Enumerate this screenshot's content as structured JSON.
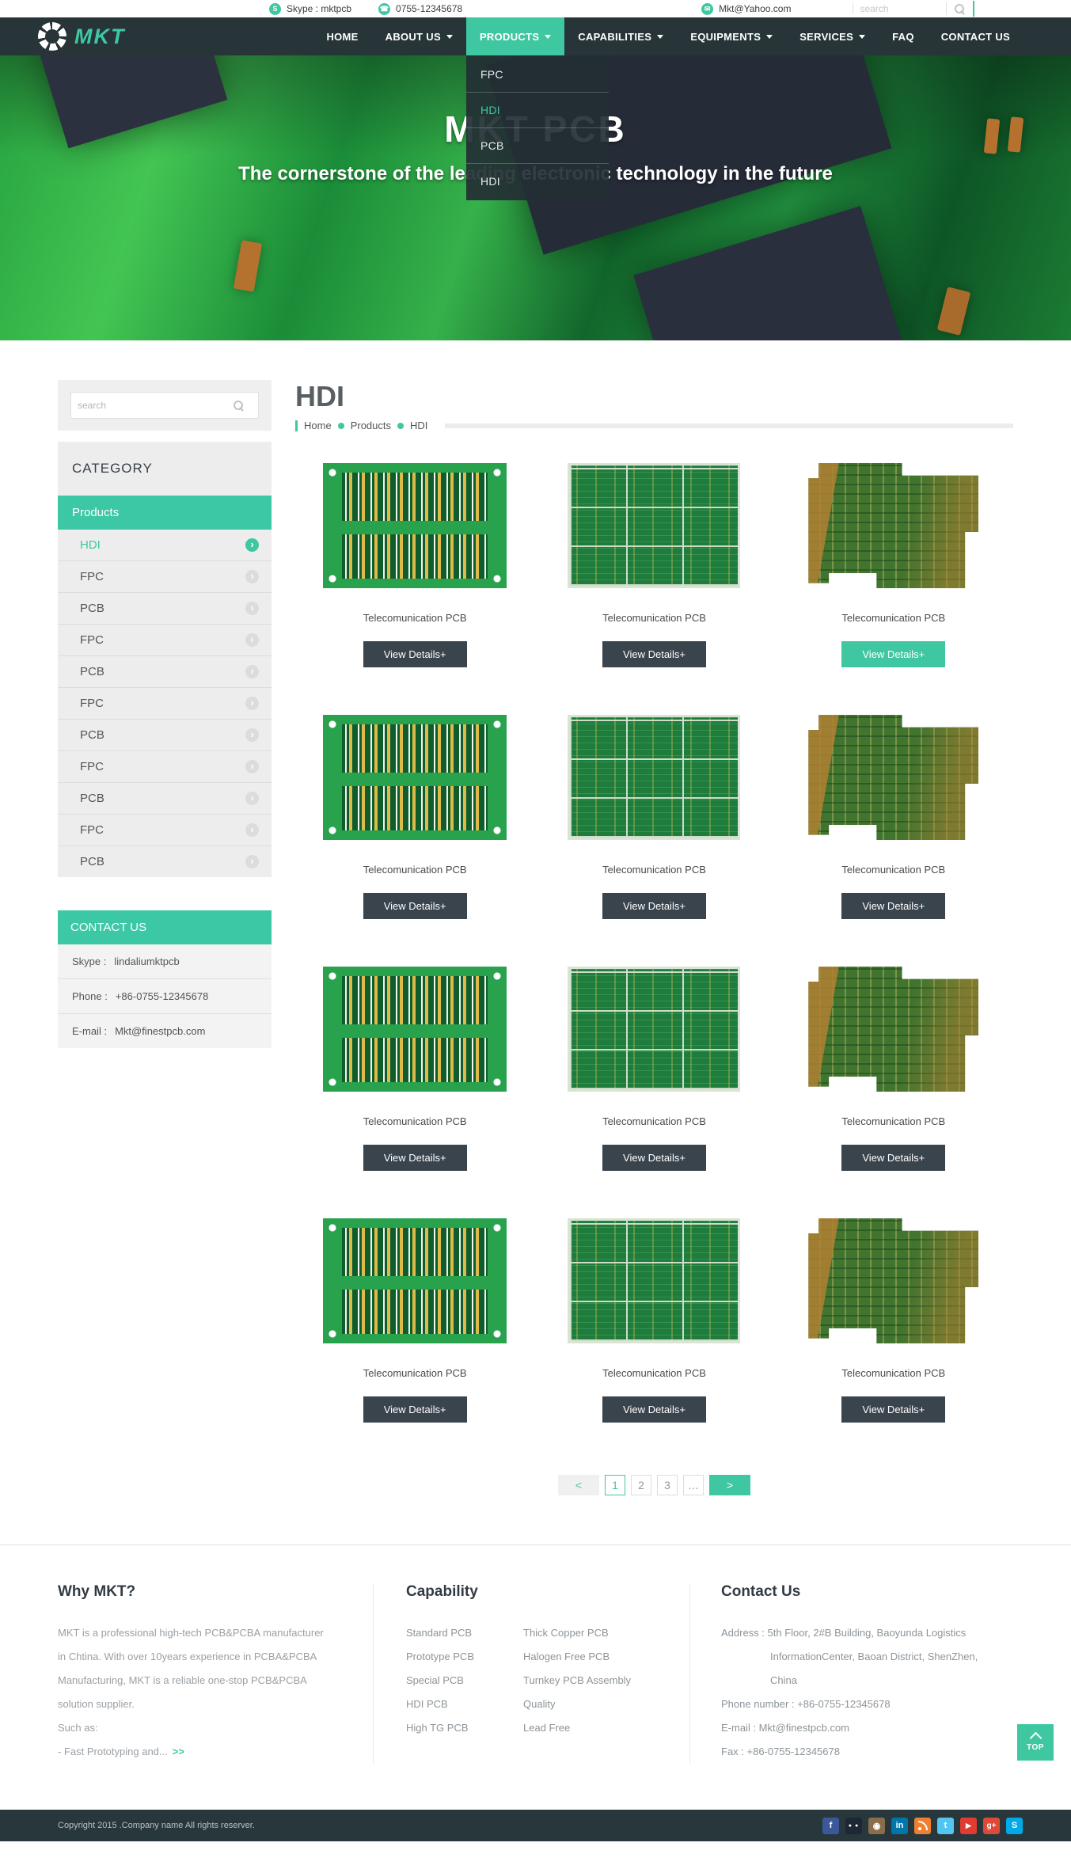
{
  "colors": {
    "accent": "#3fc7a2",
    "nav_bg": "#273539",
    "dark_button": "#3a444d",
    "sidebar_bg": "#ededed"
  },
  "topbar": {
    "items": [
      {
        "icon": "skype",
        "glyph": "S",
        "text": "Skype : mktpcb"
      },
      {
        "icon": "phone",
        "glyph": "☎",
        "text": "0755-12345678"
      },
      {
        "icon": "email",
        "glyph": "✉",
        "text": "Mkt@Yahoo.com"
      }
    ],
    "search_placeholder": "search"
  },
  "nav": {
    "brand": "MKT",
    "items": [
      {
        "label": "HOME"
      },
      {
        "label": "ABOUT US"
      },
      {
        "label": "PRODUCTS"
      },
      {
        "label": "CAPABILITIES"
      },
      {
        "label": "EQUIPMENTS"
      },
      {
        "label": "SERVICES"
      },
      {
        "label": "FAQ"
      },
      {
        "label": "CONTACT US"
      }
    ],
    "products_dropdown": [
      "FPC",
      "HDI",
      "PCB",
      "HDI"
    ],
    "dropdown_active": "HDI"
  },
  "hero": {
    "title": "MKT PCB",
    "subtitle": "The cornerstone of the leading electronic technology in the future"
  },
  "sidebar": {
    "search_placeholder": "search",
    "category_title": "CATEGORY",
    "group_title": "Products",
    "items": [
      "HDI",
      "FPC",
      "PCB",
      "FPC",
      "PCB",
      "FPC",
      "PCB",
      "FPC",
      "PCB",
      "FPC",
      "PCB"
    ],
    "active_item": "HDI",
    "contact": {
      "title": "CONTACT US",
      "rows": [
        {
          "label": "Skype :",
          "value": "lindaliumktpcb"
        },
        {
          "label": "Phone :",
          "value": "+86-0755-12345678"
        },
        {
          "label": "E-mail :",
          "value": "Mkt@finestpcb.com"
        }
      ]
    }
  },
  "page": {
    "title": "HDI",
    "breadcrumb": [
      "Home",
      "Products",
      "HDI"
    ]
  },
  "products": {
    "card_title": "Telecomunication PCB",
    "view_details": "View Details+",
    "count": 12,
    "highlighted_card_index": 2
  },
  "pagination": {
    "prev": "<",
    "pages": [
      "1",
      "2",
      "3",
      "…"
    ],
    "active_page": "1",
    "next": ">"
  },
  "footer": {
    "why": {
      "title": "Why MKT?",
      "lines": [
        "MKT is a professional high-tech PCB&PCBA manufacturer",
        "in Chtina. With over 10years experience in PCBA&PCBA",
        "Manufacturing, MKT is a reliable one-stop PCB&PCBA",
        "solution supplier.",
        "Such as:"
      ],
      "more": "- Fast Prototyping and...",
      "more_arrow": ">>"
    },
    "capability": {
      "title": "Capability",
      "col1": [
        "Standard PCB",
        "Prototype PCB",
        "Special PCB",
        "HDI PCB",
        "High TG PCB"
      ],
      "col2": [
        "Thick Copper PCB",
        "Halogen Free PCB",
        "Turnkey PCB Assembly",
        "Quality",
        "Lead Free"
      ]
    },
    "contact": {
      "title": "Contact Us",
      "lines": [
        "Address : 5th Floor, 2#B Building, Baoyunda Logistics",
        "InformationCenter, Baoan District, ShenZhen,",
        "China",
        "Phone number :   +86-0755-12345678",
        "E-mail :   Mkt@finestpcb.com",
        "Fax :   +86-0755-12345678"
      ]
    }
  },
  "top_button": {
    "label": "TOP"
  },
  "bottombar": {
    "copyright": "Copyright 2015 .Company name All rights reserver.",
    "social": [
      {
        "name": "facebook",
        "glyph": "f",
        "color": "#3b5998"
      },
      {
        "name": "flickr",
        "glyph": "● ●",
        "color": "#1c2833"
      },
      {
        "name": "instagram",
        "glyph": "◉",
        "color": "#8a6d4b"
      },
      {
        "name": "linkedin",
        "glyph": "in",
        "color": "#0077a8"
      },
      {
        "name": "rss",
        "glyph": "",
        "color": "#f08031"
      },
      {
        "name": "twitter",
        "glyph": "t",
        "color": "#54c5f0"
      },
      {
        "name": "youtube",
        "glyph": "▶",
        "color": "#e03c31"
      },
      {
        "name": "google-plus",
        "glyph": "g+",
        "color": "#dc4a38"
      },
      {
        "name": "skype",
        "glyph": "S",
        "color": "#00a9e8"
      }
    ]
  }
}
